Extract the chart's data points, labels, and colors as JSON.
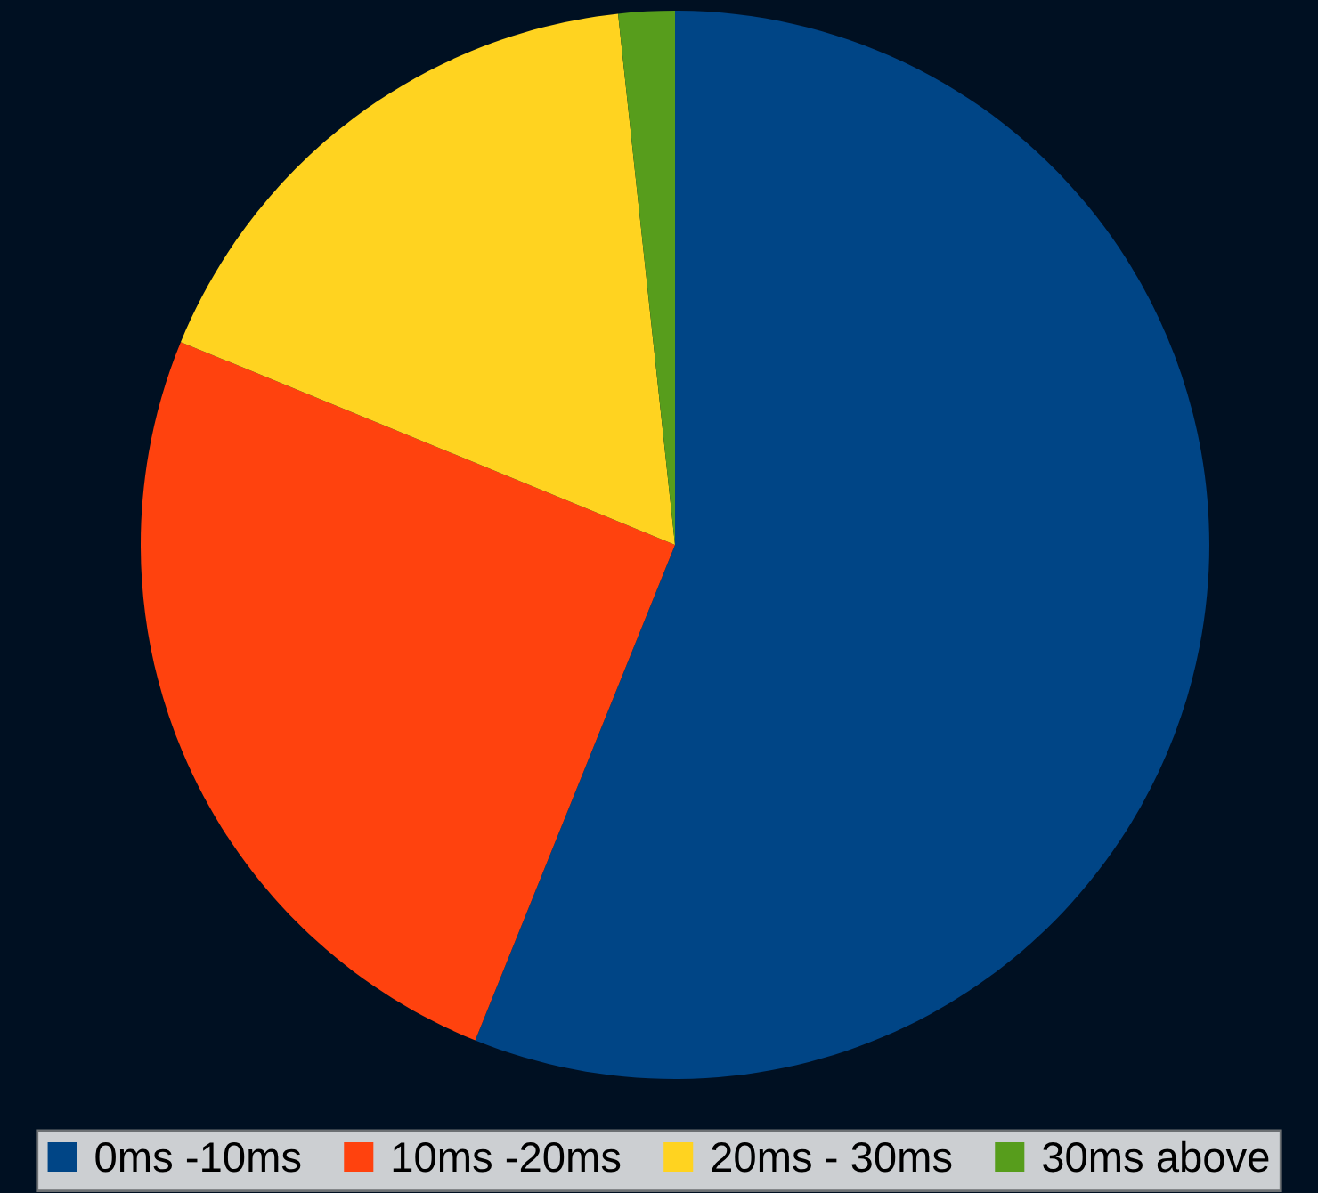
{
  "chart_data": {
    "type": "pie",
    "categories": [
      "0ms -10ms",
      "10ms -20ms",
      "20ms - 30ms",
      "30ms above"
    ],
    "values": [
      56.1,
      25.1,
      17.1,
      1.7
    ],
    "colors": [
      "#004586",
      "#ff420e",
      "#ffd320",
      "#579d1c"
    ],
    "legend": "bottom"
  }
}
